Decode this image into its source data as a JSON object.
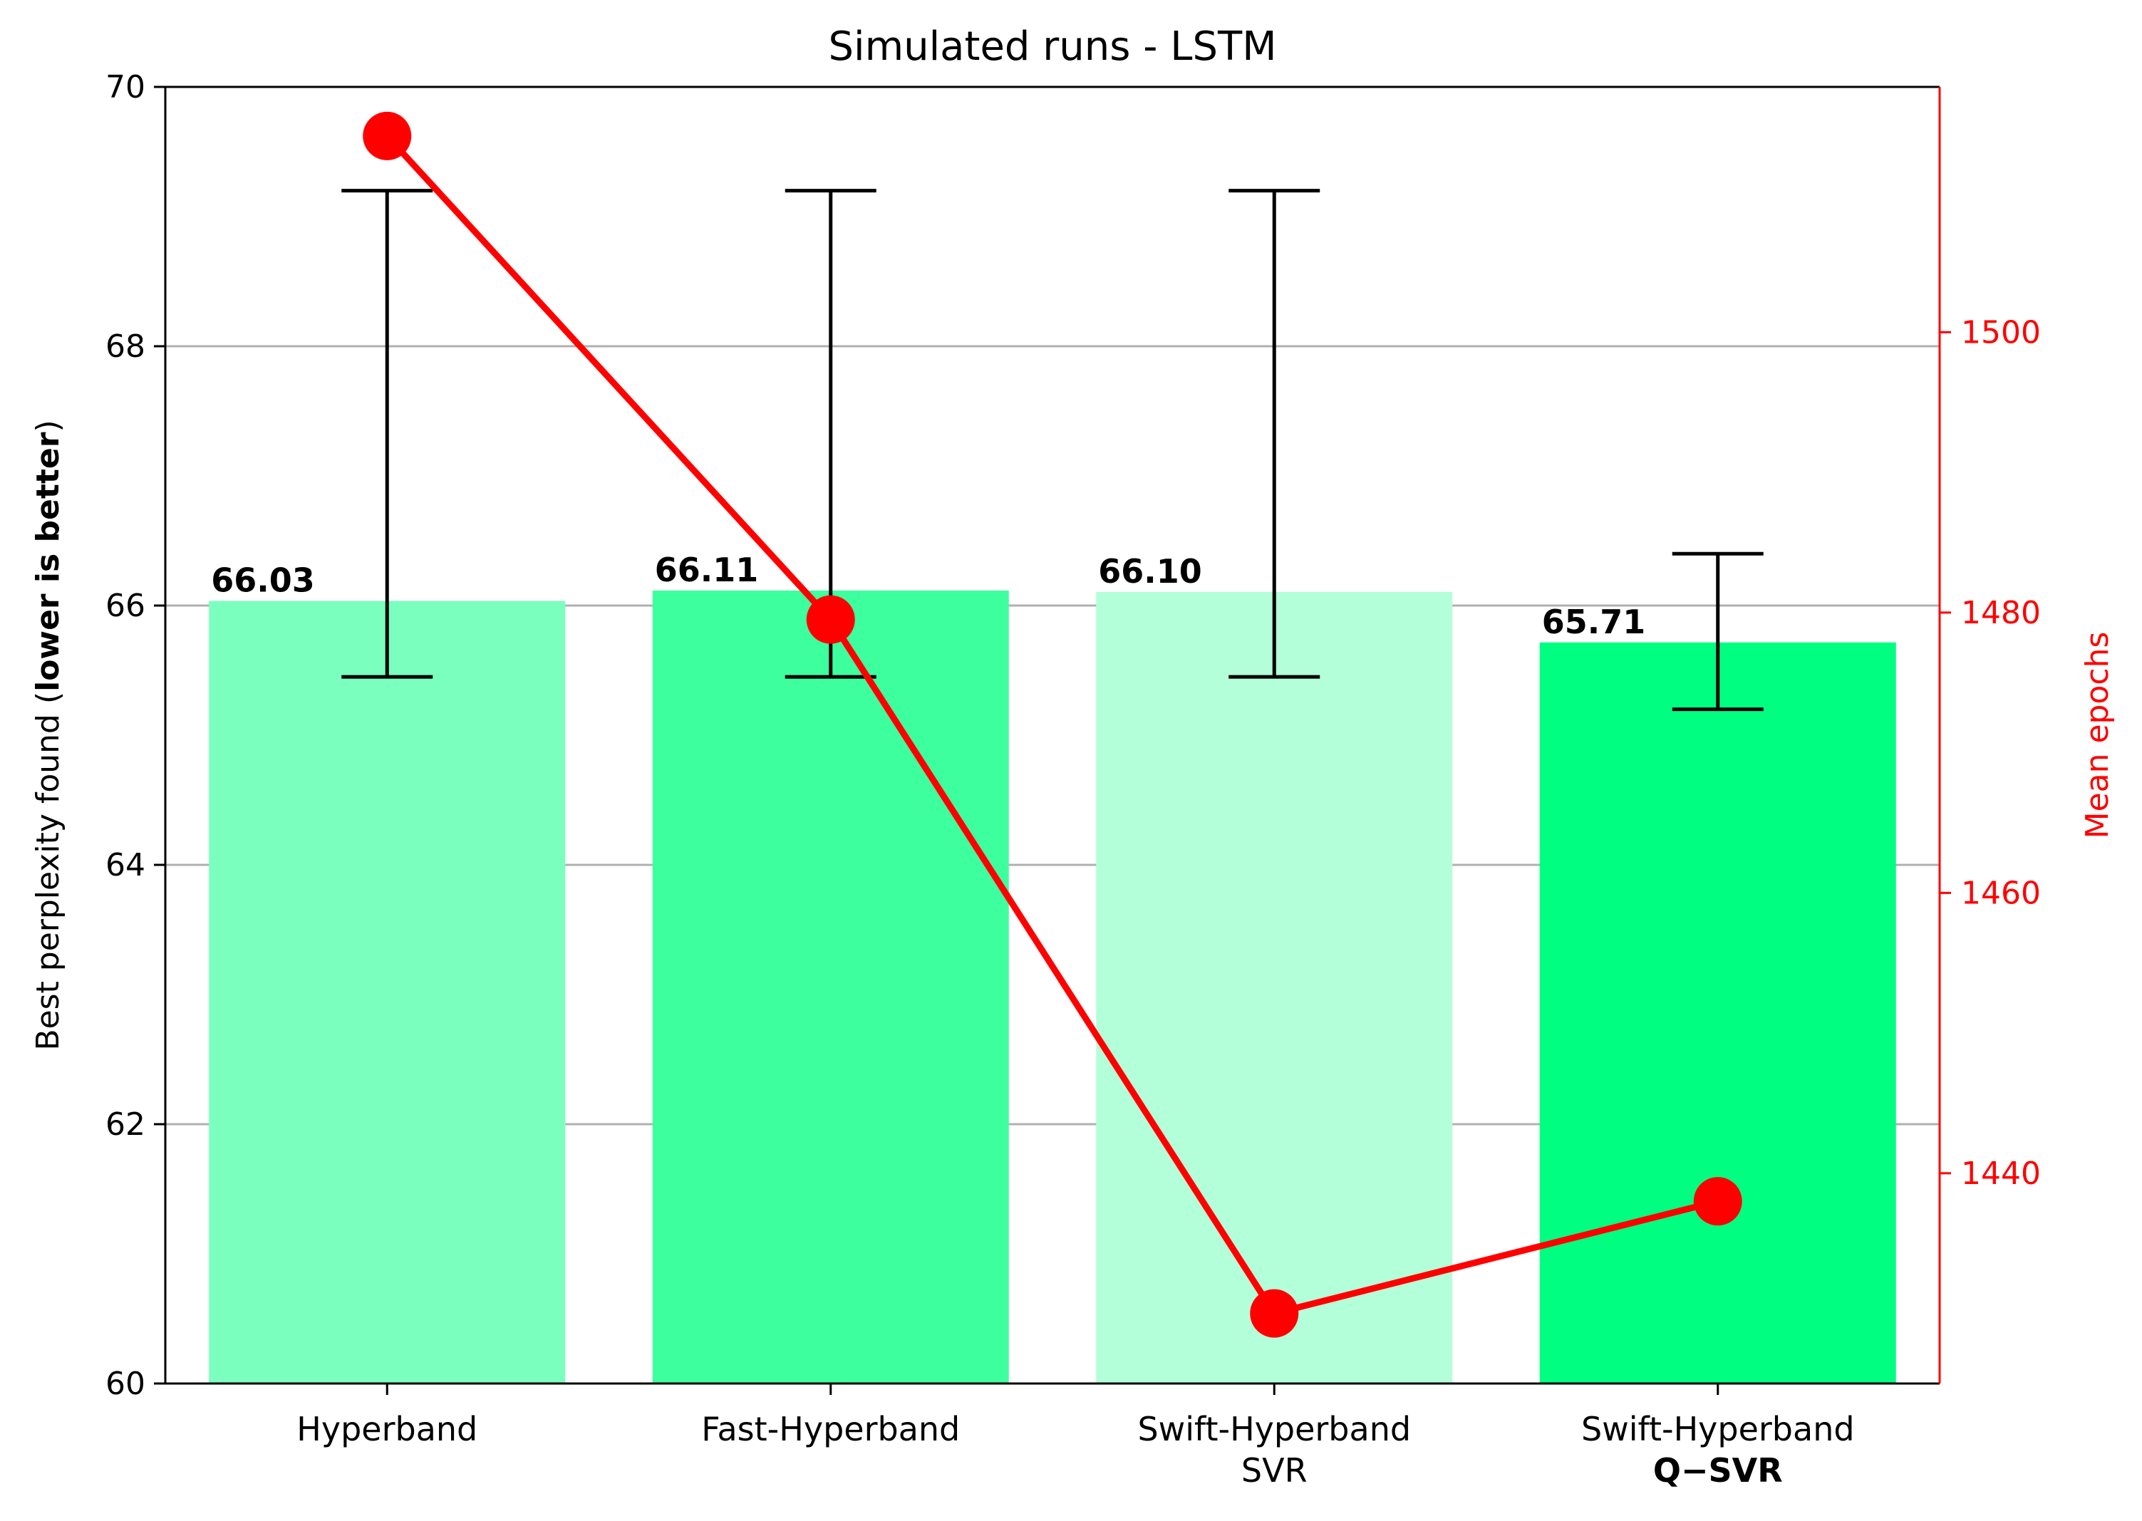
{
  "chart_data": {
    "type": "bar",
    "title": "Simulated runs - LSTM",
    "ylabel": {
      "prefix": "Best perplexity found (",
      "bold": "lower is better",
      "suffix": ")"
    },
    "y2label": "Mean epochs",
    "categories": [
      {
        "line1": "Hyperband",
        "line2": "",
        "line2_bold": false
      },
      {
        "line1": "Fast-Hyperband",
        "line2": "",
        "line2_bold": false
      },
      {
        "line1": "Swift-Hyperband",
        "line2": "SVR",
        "line2_bold": false
      },
      {
        "line1": "Swift-Hyperband",
        "line2": "Q−SVR",
        "line2_bold": true
      }
    ],
    "values": [
      66.03,
      66.11,
      66.1,
      65.71
    ],
    "value_labels": [
      "66.03",
      "66.11",
      "66.10",
      "65.71"
    ],
    "bar_colors": [
      "#7affbf",
      "#3dff9e",
      "#b3ffd9",
      "#00ff80"
    ],
    "error_low": [
      65.45,
      65.45,
      65.45,
      65.2
    ],
    "error_high": [
      69.2,
      69.2,
      69.2,
      66.4
    ],
    "ylim": [
      60,
      70
    ],
    "yticks": [
      60,
      62,
      64,
      66,
      68,
      70
    ],
    "grid": true,
    "secondary_series": {
      "name": "Mean epochs",
      "type": "line",
      "color": "#ff0000",
      "values": [
        1514,
        1479.5,
        1430,
        1438
      ],
      "ylim": [
        1425,
        1517.5
      ],
      "yticks": [
        1440,
        1460,
        1480,
        1500
      ]
    }
  }
}
